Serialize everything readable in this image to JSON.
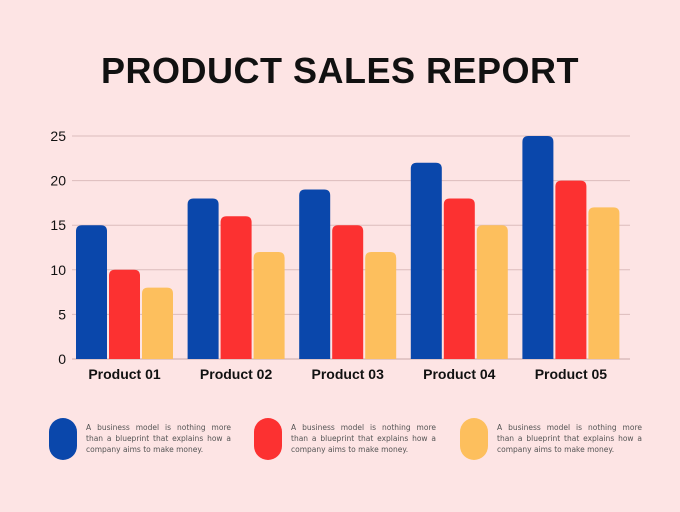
{
  "colors": {
    "background": "#fde4e4",
    "series": [
      "#0a47ab",
      "#fc3131",
      "#fdbf5d"
    ],
    "grid": "#dcbcbc",
    "text": "#111111"
  },
  "chart_data": {
    "type": "bar",
    "title": "PRODUCT SALES REPORT",
    "categories": [
      "Product 01",
      "Product 02",
      "Product 03",
      "Product 04",
      "Product 05"
    ],
    "series": [
      {
        "values": [
          15,
          18,
          19,
          22,
          25
        ]
      },
      {
        "values": [
          10,
          16,
          15,
          18,
          20
        ]
      },
      {
        "values": [
          8,
          12,
          12,
          15,
          17
        ]
      }
    ],
    "ylim": [
      0,
      25
    ],
    "yticks": [
      0,
      5,
      10,
      15,
      20,
      25
    ],
    "grid": true,
    "legend_position": "bottom"
  },
  "legend": [
    {
      "text": "A business model is nothing more than a blueprint that explains how a company aims to make money."
    },
    {
      "text": "A business model is nothing more than a blueprint that explains how a company aims to make money."
    },
    {
      "text": "A business model is nothing more than a blueprint that explains how a company aims to make money."
    }
  ]
}
